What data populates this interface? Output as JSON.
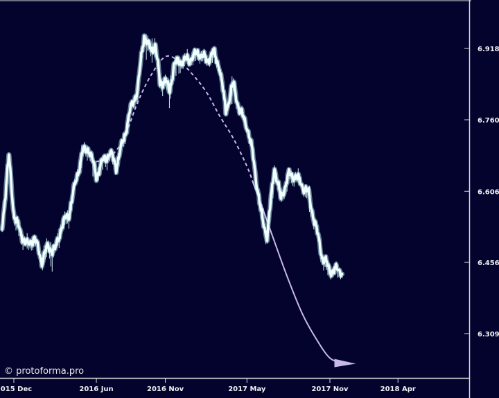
{
  "watermark": "© protoforma.pro",
  "colors": {
    "background": "#03032e",
    "price_line": "#f2ffff",
    "price_glow": "#b4e6eb",
    "wick": "#cdeef2",
    "forecast_line": "#c6b8e8",
    "frame": "#d9d9d9",
    "text": "#f2f2f2"
  },
  "chart_data": {
    "type": "line",
    "title": "",
    "xlabel": "",
    "ylabel": "",
    "x_ticks": [
      "2015 Dec",
      "2016 Jun",
      "2016 Nov",
      "2017 May",
      "2017 Nov",
      "2018 Apr"
    ],
    "y_ticks": [
      "6.9183",
      "6.7608",
      "6.6065",
      "6.4565",
      "6.3096"
    ],
    "ylim": [
      6.23,
      7.02
    ],
    "grid": false,
    "legend": "none",
    "series": [
      {
        "kind": "price",
        "x": [
          "2015-11-05",
          "2015-11-20",
          "2015-12-01",
          "2015-12-15",
          "2016-01-01",
          "2016-01-15",
          "2016-02-01",
          "2016-02-15",
          "2016-03-01",
          "2016-03-15",
          "2016-04-01",
          "2016-04-15",
          "2016-05-01",
          "2016-05-15",
          "2016-06-01",
          "2016-06-15",
          "2016-07-01",
          "2016-07-15",
          "2016-08-01",
          "2016-08-15",
          "2016-09-01",
          "2016-09-15",
          "2016-10-01",
          "2016-10-10",
          "2016-10-20",
          "2016-11-01",
          "2016-11-10",
          "2016-11-20",
          "2016-12-01",
          "2016-12-15",
          "2017-01-01",
          "2017-01-15",
          "2017-02-01",
          "2017-02-15",
          "2017-03-01",
          "2017-03-15",
          "2017-04-01",
          "2017-04-15",
          "2017-05-01",
          "2017-05-15",
          "2017-06-01",
          "2017-06-15",
          "2017-07-01",
          "2017-07-15",
          "2017-08-01",
          "2017-08-15",
          "2017-09-01",
          "2017-09-15",
          "2017-10-01",
          "2017-10-15",
          "2017-11-01",
          "2017-11-15",
          "2017-11-28"
        ],
        "y": [
          6.53,
          6.68,
          6.56,
          6.52,
          6.49,
          6.51,
          6.46,
          6.49,
          6.48,
          6.53,
          6.56,
          6.62,
          6.69,
          6.7,
          6.64,
          6.67,
          6.69,
          6.66,
          6.72,
          6.78,
          6.83,
          6.95,
          6.91,
          6.93,
          6.84,
          6.85,
          6.82,
          6.88,
          6.89,
          6.89,
          6.9,
          6.91,
          6.89,
          6.91,
          6.88,
          6.78,
          6.84,
          6.78,
          6.75,
          6.68,
          6.56,
          6.51,
          6.66,
          6.59,
          6.64,
          6.64,
          6.62,
          6.6,
          6.53,
          6.47,
          6.44,
          6.44,
          6.44
        ]
      },
      {
        "kind": "forecast",
        "x": [
          "2016-06-01",
          "2016-07-01",
          "2016-08-01",
          "2016-09-01",
          "2016-10-01",
          "2016-11-01",
          "2016-12-01",
          "2017-01-01",
          "2017-02-01",
          "2017-03-01",
          "2017-04-01",
          "2017-05-01",
          "2017-06-01",
          "2017-07-01",
          "2017-08-01",
          "2017-09-01",
          "2017-10-01",
          "2017-11-01",
          "2017-12-01"
        ],
        "y": [
          6.67,
          6.68,
          6.72,
          6.8,
          6.86,
          6.9,
          6.89,
          6.86,
          6.82,
          6.77,
          6.72,
          6.66,
          6.58,
          6.5,
          6.42,
          6.35,
          6.3,
          6.26,
          6.25
        ],
        "projected_from": "2017-05-15"
      }
    ]
  }
}
